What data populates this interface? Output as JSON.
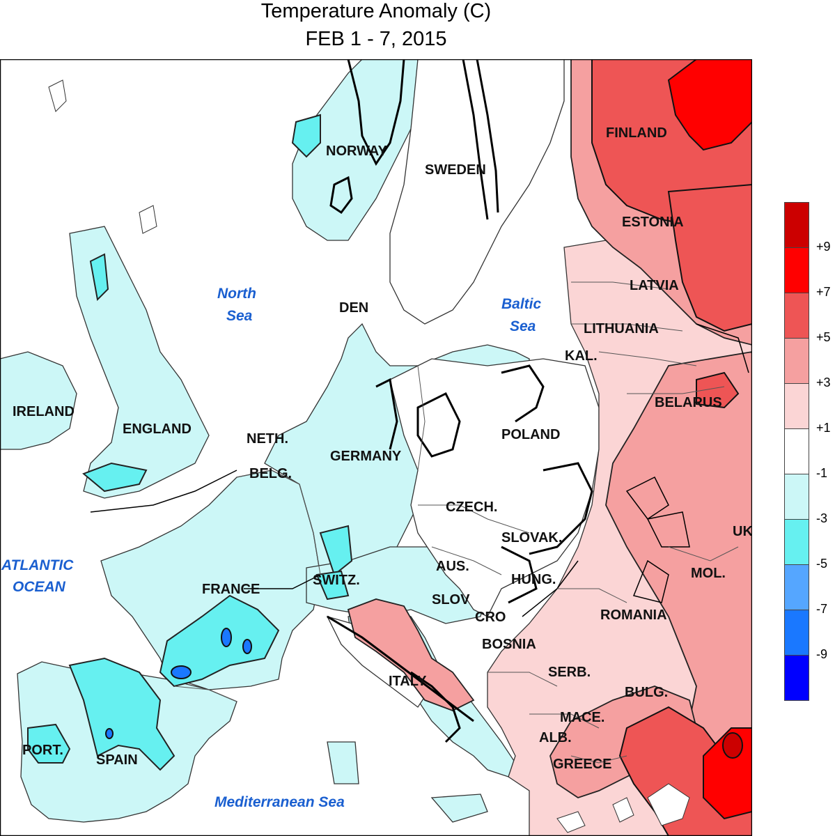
{
  "title": {
    "line1": "Temperature Anomaly (C)",
    "line2": "FEB 1 - 7, 2015"
  },
  "map": {
    "countries": [
      {
        "name": "FINLAND"
      },
      {
        "name": "NORWAY"
      },
      {
        "name": "SWEDEN"
      },
      {
        "name": "ESTONIA"
      },
      {
        "name": "LATVIA"
      },
      {
        "name": "LITHUANIA"
      },
      {
        "name": "KAL."
      },
      {
        "name": "BELARUS"
      },
      {
        "name": "IRELAND"
      },
      {
        "name": "ENGLAND"
      },
      {
        "name": "NETH."
      },
      {
        "name": "BELG."
      },
      {
        "name": "DEN"
      },
      {
        "name": "GERMANY"
      },
      {
        "name": "POLAND"
      },
      {
        "name": "CZECH."
      },
      {
        "name": "SLOVAK."
      },
      {
        "name": "FRANCE"
      },
      {
        "name": "SWITZ."
      },
      {
        "name": "AUS."
      },
      {
        "name": "HUNG."
      },
      {
        "name": "MOL."
      },
      {
        "name": "UK"
      },
      {
        "name": "SLOV"
      },
      {
        "name": "CRO"
      },
      {
        "name": "ROMANIA"
      },
      {
        "name": "BOSNIA"
      },
      {
        "name": "SERB."
      },
      {
        "name": "BULG."
      },
      {
        "name": "ITALY"
      },
      {
        "name": "MACE."
      },
      {
        "name": "ALB."
      },
      {
        "name": "GREECE"
      },
      {
        "name": "PORT."
      },
      {
        "name": "SPAIN"
      }
    ],
    "seas": [
      {
        "line1": "North",
        "line2": "Sea"
      },
      {
        "line1": "Baltic",
        "line2": "Sea"
      },
      {
        "line1": "ATLANTIC",
        "line2": "OCEAN"
      },
      {
        "line1": "Mediterranean Sea",
        "line2": ""
      }
    ]
  },
  "legend": {
    "bins": [
      {
        "color": "#cc0000"
      },
      {
        "color": "#ff0000"
      },
      {
        "color": "#ee5555"
      },
      {
        "color": "#f5a0a0"
      },
      {
        "color": "#fbd5d5"
      },
      {
        "color": "#ffffff"
      },
      {
        "color": "#ccf7f7"
      },
      {
        "color": "#66f0f0"
      },
      {
        "color": "#55a6ff"
      },
      {
        "color": "#1a78ff"
      },
      {
        "color": "#0000ff"
      }
    ],
    "ticks": [
      "+9",
      "+7",
      "+5",
      "+3",
      "+1",
      "-1",
      "-3",
      "-5",
      "-7",
      "-9"
    ]
  }
}
